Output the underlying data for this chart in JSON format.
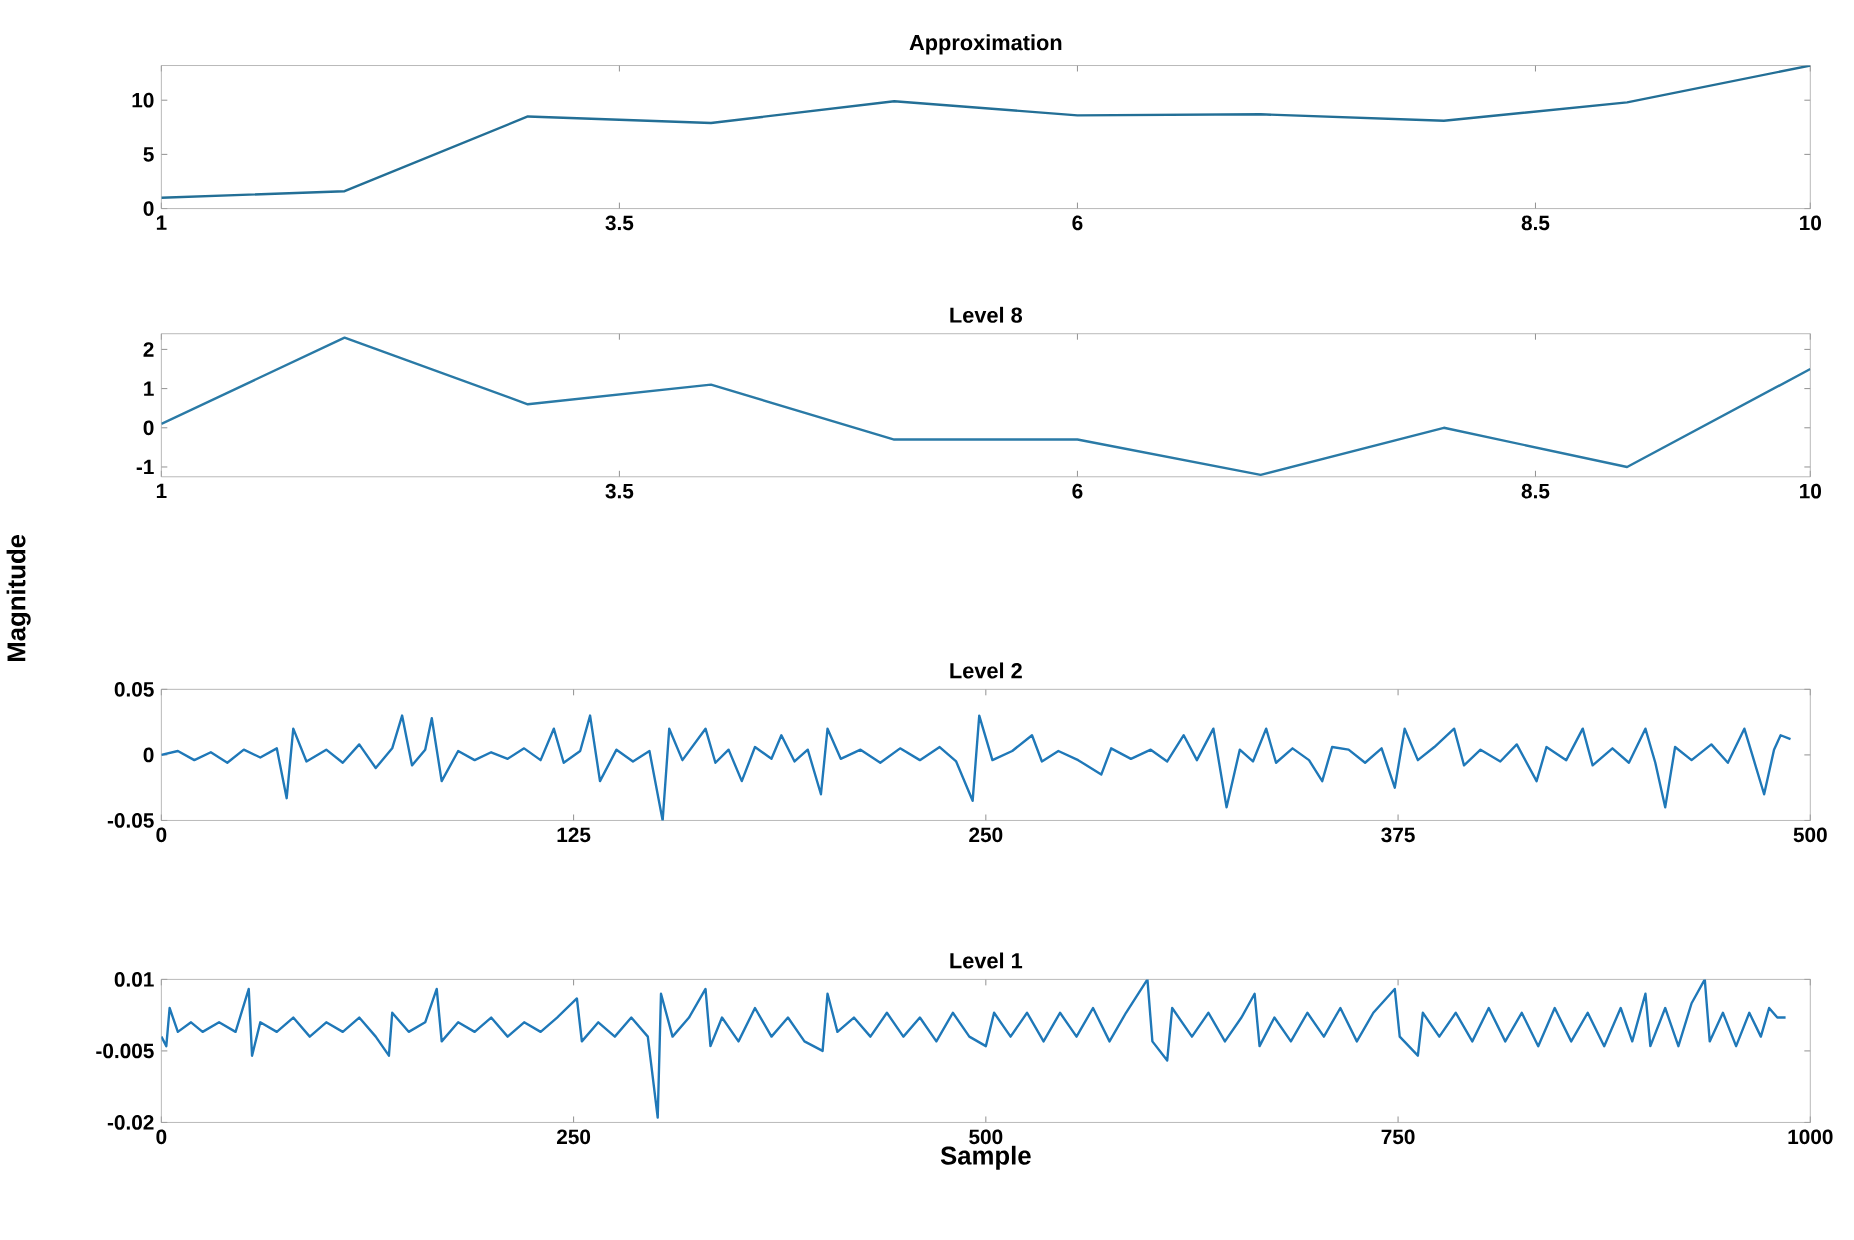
{
  "chart_data": [
    {
      "type": "line",
      "title": "Approximation",
      "x": [
        1,
        2,
        3,
        4,
        5,
        6,
        7,
        8,
        9,
        10
      ],
      "xlim": [
        1,
        10
      ],
      "xticks": [
        1,
        3.5,
        6,
        8.5,
        10
      ],
      "ylim": [
        0,
        13.2
      ],
      "yticks": [
        0,
        5,
        10
      ],
      "grid": false,
      "marker": "none",
      "line_style": "solid",
      "series": [
        {
          "color": "#236f96",
          "values": [
            1.0,
            1.6,
            8.5,
            7.9,
            9.9,
            8.6,
            8.7,
            8.1,
            9.8,
            13.2
          ]
        }
      ]
    },
    {
      "type": "line",
      "title": "Level 8",
      "ylabel": "Magnitude",
      "x": [
        1,
        2,
        3,
        4,
        5,
        6,
        7,
        8,
        9,
        10
      ],
      "xlim": [
        1,
        10
      ],
      "xticks": [
        1,
        3.5,
        6,
        8.5,
        10
      ],
      "ylim": [
        -1.25,
        2.4
      ],
      "yticks": [
        -1,
        0,
        1,
        2
      ],
      "grid": false,
      "marker": "none",
      "line_style": "solid",
      "series": [
        {
          "color": "#2a7aa6",
          "values": [
            0.1,
            2.3,
            0.6,
            1.1,
            -0.3,
            -0.3,
            -1.2,
            0.0,
            -1.0,
            1.5
          ]
        }
      ]
    },
    {
      "type": "line",
      "title": "Level 2",
      "xlim": [
        0,
        500
      ],
      "xticks": [
        0,
        125,
        250,
        375,
        500
      ],
      "ylim": [
        -0.05,
        0.05
      ],
      "yticks": [
        -0.05,
        0,
        0.05
      ],
      "grid": false,
      "marker": "none",
      "line_style": "solid",
      "x": [
        0,
        5,
        10,
        15,
        20,
        25,
        30,
        35,
        38,
        40,
        44,
        50,
        55,
        60,
        65,
        70,
        73,
        76,
        80,
        82,
        85,
        90,
        95,
        100,
        105,
        110,
        115,
        119,
        122,
        127,
        130,
        133,
        138,
        143,
        148,
        152,
        154,
        158,
        165,
        168,
        172,
        176,
        180,
        185,
        188,
        192,
        196,
        200,
        202,
        206,
        212,
        218,
        224,
        230,
        236,
        241,
        246,
        248,
        252,
        258,
        264,
        267,
        272,
        278,
        285,
        288,
        294,
        300,
        305,
        310,
        314,
        319,
        323,
        327,
        331,
        335,
        338,
        343,
        348,
        352,
        355,
        360,
        365,
        370,
        374,
        377,
        381,
        386,
        392,
        395,
        400,
        406,
        411,
        417,
        420,
        426,
        431,
        434,
        440,
        445,
        450,
        453,
        456,
        459,
        464,
        470,
        475,
        480,
        483,
        486,
        489,
        491,
        494
      ],
      "series": [
        {
          "color": "#1f78b8",
          "values": [
            0,
            0.003,
            -0.004,
            0.002,
            -0.006,
            0.004,
            -0.002,
            0.005,
            -0.033,
            0.02,
            -0.005,
            0.004,
            -0.006,
            0.008,
            -0.01,
            0.005,
            0.03,
            -0.008,
            0.004,
            0.028,
            -0.02,
            0.003,
            -0.004,
            0.002,
            -0.003,
            0.005,
            -0.004,
            0.02,
            -0.006,
            0.003,
            0.03,
            -0.02,
            0.004,
            -0.005,
            0.003,
            -0.05,
            0.02,
            -0.004,
            0.02,
            -0.006,
            0.004,
            -0.02,
            0.006,
            -0.003,
            0.015,
            -0.005,
            0.004,
            -0.03,
            0.02,
            -0.003,
            0.004,
            -0.006,
            0.005,
            -0.004,
            0.006,
            -0.005,
            -0.035,
            0.03,
            -0.004,
            0.003,
            0.015,
            -0.005,
            0.003,
            -0.004,
            -0.015,
            0.005,
            -0.003,
            0.004,
            -0.005,
            0.015,
            -0.004,
            0.02,
            -0.04,
            0.004,
            -0.005,
            0.02,
            -0.006,
            0.005,
            -0.004,
            -0.02,
            0.006,
            0.004,
            -0.006,
            0.005,
            -0.025,
            0.02,
            -0.004,
            0.006,
            0.02,
            -0.008,
            0.004,
            -0.005,
            0.008,
            -0.02,
            0.006,
            -0.004,
            0.02,
            -0.008,
            0.005,
            -0.006,
            0.02,
            -0.006,
            -0.04,
            0.006,
            -0.004,
            0.008,
            -0.006,
            0.02,
            -0.005,
            -0.03,
            0.004,
            0.015,
            0.012
          ]
        }
      ]
    },
    {
      "type": "line",
      "title": "Level 1",
      "xlabel": "Sample",
      "xlim": [
        0,
        1000
      ],
      "xticks": [
        0,
        250,
        500,
        750,
        1000
      ],
      "ylim": [
        -0.02,
        0.01
      ],
      "yticks": [
        -0.02,
        -0.005,
        0.01
      ],
      "grid": false,
      "marker": "none",
      "line_style": "solid",
      "x": [
        0,
        3,
        5,
        10,
        18,
        25,
        35,
        45,
        53,
        55,
        60,
        70,
        80,
        90,
        100,
        110,
        120,
        130,
        138,
        140,
        150,
        160,
        167,
        170,
        180,
        190,
        200,
        210,
        220,
        230,
        240,
        252,
        255,
        265,
        275,
        285,
        295,
        301,
        303,
        310,
        320,
        330,
        333,
        340,
        350,
        360,
        370,
        380,
        390,
        401,
        404,
        410,
        420,
        430,
        440,
        450,
        460,
        470,
        480,
        490,
        500,
        505,
        515,
        525,
        535,
        545,
        555,
        565,
        575,
        585,
        598,
        601,
        610,
        613,
        625,
        635,
        645,
        655,
        663,
        666,
        675,
        685,
        695,
        705,
        715,
        725,
        735,
        748,
        751,
        762,
        765,
        775,
        785,
        795,
        805,
        815,
        825,
        835,
        845,
        855,
        865,
        875,
        885,
        892,
        900,
        903,
        912,
        920,
        928,
        936,
        939,
        947,
        955,
        963,
        970,
        975,
        980,
        985
      ],
      "series": [
        {
          "color": "#1f78b8",
          "values": [
            -0.002,
            -0.004,
            0.004,
            -0.001,
            0.001,
            -0.001,
            0.001,
            -0.001,
            0.008,
            -0.006,
            0.001,
            -0.001,
            0.002,
            -0.002,
            0.001,
            -0.001,
            0.002,
            -0.002,
            -0.006,
            0.003,
            -0.001,
            0.001,
            0.008,
            -0.003,
            0.001,
            -0.001,
            0.002,
            -0.002,
            0.001,
            -0.001,
            0.002,
            0.006,
            -0.003,
            0.001,
            -0.002,
            0.002,
            -0.002,
            -0.019,
            0.007,
            -0.002,
            0.002,
            0.008,
            -0.004,
            0.002,
            -0.003,
            0.004,
            -0.002,
            0.002,
            -0.003,
            -0.005,
            0.007,
            -0.001,
            0.002,
            -0.002,
            0.003,
            -0.002,
            0.002,
            -0.003,
            0.003,
            -0.002,
            -0.004,
            0.003,
            -0.002,
            0.003,
            -0.003,
            0.003,
            -0.002,
            0.004,
            -0.003,
            0.003,
            0.01,
            -0.003,
            -0.007,
            0.004,
            -0.002,
            0.003,
            -0.003,
            0.002,
            0.007,
            -0.004,
            0.002,
            -0.003,
            0.003,
            -0.002,
            0.004,
            -0.003,
            0.003,
            0.008,
            -0.002,
            -0.006,
            0.003,
            -0.002,
            0.003,
            -0.003,
            0.004,
            -0.003,
            0.003,
            -0.004,
            0.004,
            -0.003,
            0.003,
            -0.004,
            0.004,
            -0.003,
            0.007,
            -0.004,
            0.004,
            -0.004,
            0.005,
            0.01,
            -0.003,
            0.003,
            -0.004,
            0.003,
            -0.002,
            0.004,
            0.002,
            0.002
          ]
        }
      ]
    }
  ]
}
